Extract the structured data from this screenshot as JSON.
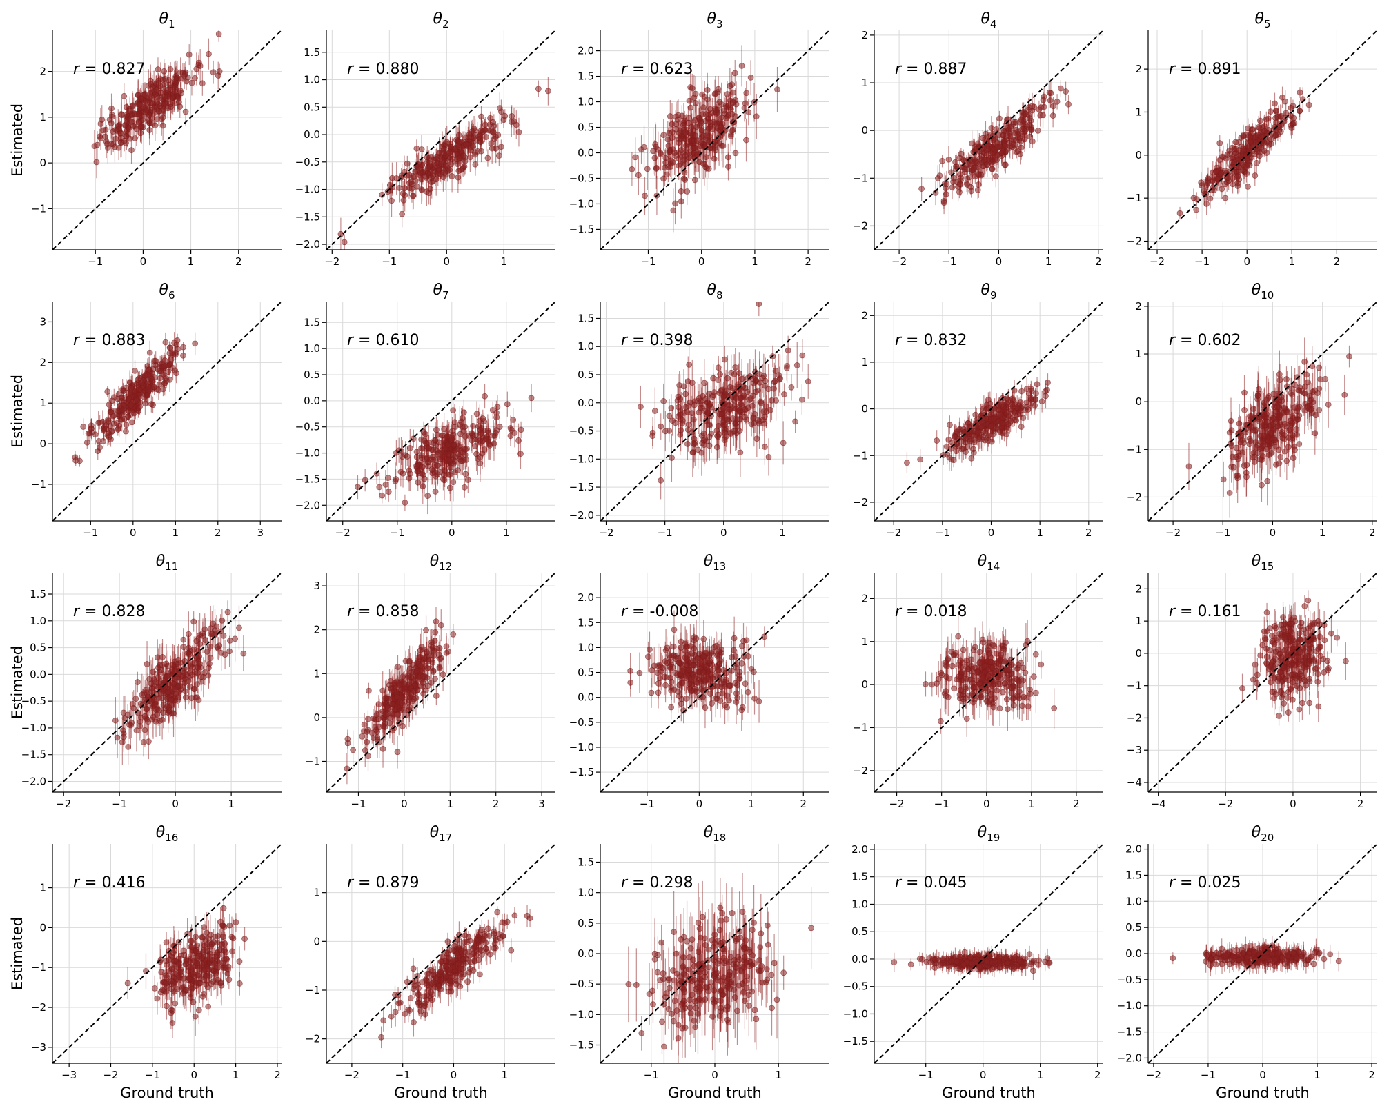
{
  "figure": {
    "xlabel": "Ground truth",
    "ylabel": "Estimated",
    "accent_color": "#8b2323",
    "line_color": "#000000"
  },
  "chart_data": [
    {
      "type": "scatter",
      "title_symbol": "θ",
      "title_sub": "1",
      "title": "θ1",
      "r_text": "r = 0.827",
      "r": 0.827,
      "xlim": [
        -1.9,
        2.9
      ],
      "ylim": [
        -1.9,
        2.9
      ],
      "xticks": [
        -1,
        0,
        1,
        2
      ],
      "yticks": [
        -1,
        0,
        1,
        2
      ],
      "center": [
        0.1,
        1.2
      ],
      "spread": [
        0.55,
        0.45
      ],
      "err": 0.25
    },
    {
      "type": "scatter",
      "title_symbol": "θ",
      "title_sub": "2",
      "title": "θ2",
      "r_text": "r = 0.880",
      "r": 0.88,
      "xlim": [
        -2.1,
        1.9
      ],
      "ylim": [
        -2.1,
        1.9
      ],
      "xticks": [
        -2,
        -1,
        0,
        1
      ],
      "yticks": [
        -2.0,
        -1.5,
        -1.0,
        -0.5,
        0.0,
        0.5,
        1.0,
        1.5
      ],
      "center": [
        0.0,
        -0.45
      ],
      "spread": [
        0.55,
        0.4
      ],
      "err": 0.2
    },
    {
      "type": "scatter",
      "title_symbol": "θ",
      "title_sub": "3",
      "title": "θ3",
      "r_text": "r = 0.623",
      "r": 0.623,
      "xlim": [
        -1.9,
        2.4
      ],
      "ylim": [
        -1.9,
        2.4
      ],
      "xticks": [
        -1,
        0,
        1,
        2
      ],
      "yticks": [
        -1.5,
        -1.0,
        -0.5,
        0.0,
        0.5,
        1.0,
        1.5,
        2.0
      ],
      "center": [
        0.0,
        0.4
      ],
      "spread": [
        0.5,
        0.5
      ],
      "err": 0.3
    },
    {
      "type": "scatter",
      "title_symbol": "θ",
      "title_sub": "4",
      "title": "θ4",
      "r_text": "r = 0.887",
      "r": 0.887,
      "xlim": [
        -2.5,
        2.1
      ],
      "ylim": [
        -2.5,
        2.1
      ],
      "xticks": [
        -2,
        -1,
        0,
        1,
        2
      ],
      "yticks": [
        -2,
        -1,
        0,
        1,
        2
      ],
      "center": [
        0.0,
        -0.3
      ],
      "spread": [
        0.55,
        0.5
      ],
      "err": 0.2
    },
    {
      "type": "scatter",
      "title_symbol": "θ",
      "title_sub": "5",
      "title": "θ5",
      "r_text": "r = 0.891",
      "r": 0.891,
      "xlim": [
        -2.2,
        2.9
      ],
      "ylim": [
        -2.2,
        2.9
      ],
      "xticks": [
        -2,
        -1,
        0,
        1,
        2
      ],
      "yticks": [
        -2,
        -1,
        0,
        1,
        2
      ],
      "center": [
        0.0,
        0.1
      ],
      "spread": [
        0.55,
        0.55
      ],
      "err": 0.2
    },
    {
      "type": "scatter",
      "title_symbol": "θ",
      "title_sub": "6",
      "title": "θ6",
      "r_text": "r = 0.883",
      "r": 0.883,
      "xlim": [
        -1.9,
        3.5
      ],
      "ylim": [
        -1.9,
        3.5
      ],
      "xticks": [
        -1,
        0,
        1,
        2,
        3
      ],
      "yticks": [
        -1,
        0,
        1,
        2,
        3
      ],
      "center": [
        0.1,
        1.2
      ],
      "spread": [
        0.5,
        0.55
      ],
      "err": 0.2
    },
    {
      "type": "scatter",
      "title_symbol": "θ",
      "title_sub": "7",
      "title": "θ7",
      "r_text": "r = 0.610",
      "r": 0.61,
      "xlim": [
        -2.3,
        1.9
      ],
      "ylim": [
        -2.3,
        1.9
      ],
      "xticks": [
        -2,
        -1,
        0,
        1
      ],
      "yticks": [
        -2.0,
        -1.5,
        -1.0,
        -0.5,
        0.0,
        0.5,
        1.0,
        1.5
      ],
      "center": [
        0.0,
        -0.95
      ],
      "spread": [
        0.55,
        0.35
      ],
      "err": 0.25
    },
    {
      "type": "scatter",
      "title_symbol": "θ",
      "title_sub": "8",
      "title": "θ8",
      "r_text": "r = 0.398",
      "r": 0.398,
      "xlim": [
        -2.1,
        1.8
      ],
      "ylim": [
        -2.1,
        1.8
      ],
      "xticks": [
        -2,
        -1,
        0,
        1
      ],
      "yticks": [
        -2.0,
        -1.5,
        -1.0,
        -0.5,
        0.0,
        0.5,
        1.0,
        1.5
      ],
      "center": [
        0.0,
        -0.1
      ],
      "spread": [
        0.5,
        0.4
      ],
      "err": 0.3
    },
    {
      "type": "scatter",
      "title_symbol": "θ",
      "title_sub": "9",
      "title": "θ9",
      "r_text": "r = 0.832",
      "r": 0.832,
      "xlim": [
        -2.4,
        2.3
      ],
      "ylim": [
        -2.4,
        2.3
      ],
      "xticks": [
        -2,
        -1,
        0,
        1,
        2
      ],
      "yticks": [
        -2,
        -1,
        0,
        1,
        2
      ],
      "center": [
        0.0,
        -0.3
      ],
      "spread": [
        0.5,
        0.35
      ],
      "err": 0.2
    },
    {
      "type": "scatter",
      "title_symbol": "θ",
      "title_sub": "10",
      "title": "θ10",
      "r_text": "r = 0.602",
      "r": 0.602,
      "xlim": [
        -2.5,
        2.1
      ],
      "ylim": [
        -2.5,
        2.1
      ],
      "xticks": [
        -2,
        -1,
        0,
        1,
        2
      ],
      "yticks": [
        -2,
        -1,
        0,
        1,
        2
      ],
      "center": [
        0.0,
        -0.5
      ],
      "spread": [
        0.5,
        0.55
      ],
      "err": 0.35
    },
    {
      "type": "scatter",
      "title_symbol": "θ",
      "title_sub": "11",
      "title": "θ11",
      "r_text": "r = 0.828",
      "r": 0.828,
      "xlim": [
        -2.2,
        1.9
      ],
      "ylim": [
        -2.2,
        1.9
      ],
      "xticks": [
        -2,
        -1,
        0,
        1
      ],
      "yticks": [
        -2.0,
        -1.5,
        -1.0,
        -0.5,
        0.0,
        0.5,
        1.0,
        1.5
      ],
      "center": [
        0.0,
        -0.1
      ],
      "spread": [
        0.45,
        0.5
      ],
      "err": 0.3
    },
    {
      "type": "scatter",
      "title_symbol": "θ",
      "title_sub": "12",
      "title": "θ12",
      "r_text": "r = 0.858",
      "r": 0.858,
      "xlim": [
        -1.7,
        3.3
      ],
      "ylim": [
        -1.7,
        3.3
      ],
      "xticks": [
        -1,
        0,
        1,
        2,
        3
      ],
      "yticks": [
        -1,
        0,
        1,
        2,
        3
      ],
      "center": [
        0.0,
        0.6
      ],
      "spread": [
        0.45,
        0.6
      ],
      "err": 0.3
    },
    {
      "type": "scatter",
      "title_symbol": "θ",
      "title_sub": "13",
      "title": "θ13",
      "r_text": "r = -0.008",
      "r": -0.008,
      "xlim": [
        -1.9,
        2.5
      ],
      "ylim": [
        -1.9,
        2.5
      ],
      "xticks": [
        -1,
        0,
        1,
        2
      ],
      "yticks": [
        -1.5,
        -1.0,
        -0.5,
        0.0,
        0.5,
        1.0,
        1.5,
        2.0
      ],
      "center": [
        0.0,
        0.5
      ],
      "spread": [
        0.5,
        0.35
      ],
      "err": 0.3
    },
    {
      "type": "scatter",
      "title_symbol": "θ",
      "title_sub": "14",
      "title": "θ14",
      "r_text": "r = 0.018",
      "r": 0.018,
      "xlim": [
        -2.5,
        2.6
      ],
      "ylim": [
        -2.5,
        2.6
      ],
      "xticks": [
        -2,
        -1,
        0,
        1,
        2
      ],
      "yticks": [
        -2,
        -1,
        0,
        1,
        2
      ],
      "center": [
        0.0,
        0.2
      ],
      "spread": [
        0.5,
        0.4
      ],
      "err": 0.35
    },
    {
      "type": "scatter",
      "title_symbol": "θ",
      "title_sub": "15",
      "title": "θ15",
      "r_text": "r = 0.161",
      "r": 0.161,
      "xlim": [
        -4.3,
        2.5
      ],
      "ylim": [
        -4.3,
        2.5
      ],
      "xticks": [
        -4,
        -2,
        0,
        2
      ],
      "yticks": [
        -4,
        -3,
        -2,
        -1,
        0,
        1,
        2
      ],
      "center": [
        0.0,
        -0.1
      ],
      "spread": [
        0.5,
        0.6
      ],
      "err": 0.4
    },
    {
      "type": "scatter",
      "title_symbol": "θ",
      "title_sub": "16",
      "title": "θ16",
      "r_text": "r = 0.416",
      "r": 0.416,
      "xlim": [
        -3.4,
        2.1
      ],
      "ylim": [
        -3.4,
        2.1
      ],
      "xticks": [
        -3,
        -2,
        -1,
        0,
        1,
        2
      ],
      "yticks": [
        -3,
        -2,
        -1,
        0,
        1
      ],
      "center": [
        0.0,
        -1.0
      ],
      "spread": [
        0.5,
        0.5
      ],
      "err": 0.35
    },
    {
      "type": "scatter",
      "title_symbol": "θ",
      "title_sub": "17",
      "title": "θ17",
      "r_text": "r = 0.879",
      "r": 0.879,
      "xlim": [
        -2.5,
        2.0
      ],
      "ylim": [
        -2.5,
        2.0
      ],
      "xticks": [
        -2,
        -1,
        0,
        1
      ],
      "yticks": [
        -2,
        -1,
        0,
        1
      ],
      "center": [
        0.0,
        -0.5
      ],
      "spread": [
        0.5,
        0.45
      ],
      "err": 0.2
    },
    {
      "type": "scatter",
      "title_symbol": "θ",
      "title_sub": "18",
      "title": "θ18",
      "r_text": "r = 0.298",
      "r": 0.298,
      "xlim": [
        -1.8,
        1.8
      ],
      "ylim": [
        -1.8,
        1.8
      ],
      "xticks": [
        -1,
        0,
        1
      ],
      "yticks": [
        -1.5,
        -1.0,
        -0.5,
        0.0,
        0.5,
        1.0,
        1.5
      ],
      "center": [
        0.0,
        -0.35
      ],
      "spread": [
        0.45,
        0.4
      ],
      "err": 0.45
    },
    {
      "type": "scatter",
      "title_symbol": "θ",
      "title_sub": "19",
      "title": "θ19",
      "r_text": "r = 0.045",
      "r": 0.045,
      "xlim": [
        -1.9,
        2.1
      ],
      "ylim": [
        -1.9,
        2.1
      ],
      "xticks": [
        -1,
        0,
        1,
        2
      ],
      "yticks": [
        -1.5,
        -1.0,
        -0.5,
        0.0,
        0.5,
        1.0,
        1.5,
        2.0
      ],
      "center": [
        0.0,
        -0.05
      ],
      "spread": [
        0.5,
        0.06
      ],
      "err": 0.12
    },
    {
      "type": "scatter",
      "title_symbol": "θ",
      "title_sub": "20",
      "title": "θ20",
      "r_text": "r = 0.025",
      "r": 0.025,
      "xlim": [
        -2.1,
        2.1
      ],
      "ylim": [
        -2.1,
        2.1
      ],
      "xticks": [
        -2,
        -1,
        0,
        1,
        2
      ],
      "yticks": [
        -2.0,
        -1.5,
        -1.0,
        -0.5,
        0.0,
        0.5,
        1.0,
        1.5,
        2.0
      ],
      "center": [
        0.0,
        -0.05
      ],
      "spread": [
        0.55,
        0.08
      ],
      "err": 0.15
    }
  ]
}
